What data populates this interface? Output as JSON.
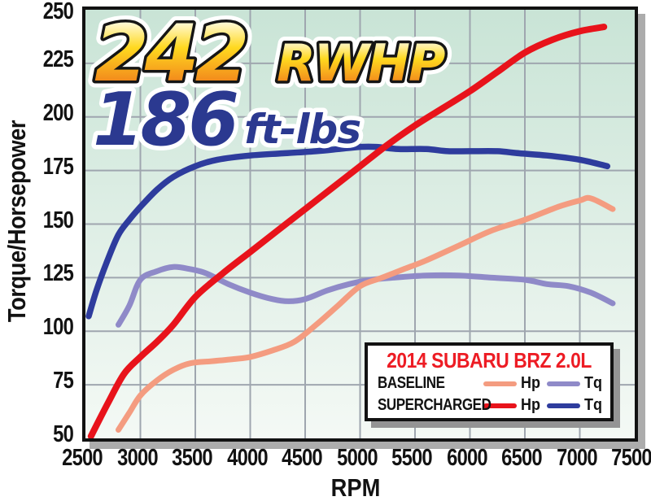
{
  "headline": {
    "power_value": "242",
    "power_unit": "RWHP",
    "torque_value": "186",
    "torque_unit": "ft-lbs",
    "power_gradient": [
      "#FFFDEC",
      "#FFD91F",
      "#F2871C"
    ],
    "power_outline": "#151515",
    "halo": "#FFFFFF",
    "torque_color": "#2B3990"
  },
  "legend": {
    "title": "2014 SUBARU BRZ 2.0L",
    "title_color": "#ED1C24",
    "rows": [
      {
        "label": "BASELINE",
        "entries": [
          {
            "label": "Hp",
            "color": "#F49C80"
          },
          {
            "label": "Tq",
            "color": "#8F8AC8"
          }
        ]
      },
      {
        "label": "SUPERCHARGED",
        "entries": [
          {
            "label": "Hp",
            "color": "#E8131B"
          },
          {
            "label": "Tq",
            "color": "#2E3C9D"
          }
        ]
      }
    ]
  },
  "colors": {
    "plot_bg_top": "#C9E4D6",
    "plot_bg_bottom": "#F4F9F5",
    "grid": "#9FA6AF",
    "border": "#121212",
    "axis_text": "#121212"
  },
  "chart_data": {
    "type": "line",
    "title": "2014 SUBARU BRZ 2.0L",
    "xlabel": "RPM",
    "ylabel": "Torque/Horsepower",
    "xlim": [
      2500,
      7500
    ],
    "ylim": [
      50,
      250
    ],
    "x_ticks": [
      2500,
      3000,
      3500,
      4000,
      4500,
      5000,
      5500,
      6000,
      6500,
      7000,
      7500
    ],
    "y_ticks": [
      50,
      75,
      100,
      125,
      150,
      175,
      200,
      225,
      250
    ],
    "grid": true,
    "legend_position": "inside bottom-right",
    "annotations": [
      "242 RWHP",
      "186 ft-lbs"
    ],
    "series": [
      {
        "name": "Baseline Tq",
        "group": "BASELINE",
        "unit": "ft-lbs",
        "color": "#8F8AC8",
        "width": 7,
        "points": [
          [
            2800,
            103
          ],
          [
            2900,
            112
          ],
          [
            3000,
            124
          ],
          [
            3150,
            128
          ],
          [
            3300,
            130
          ],
          [
            3450,
            129
          ],
          [
            3600,
            127
          ],
          [
            3800,
            122
          ],
          [
            4000,
            118
          ],
          [
            4200,
            115
          ],
          [
            4350,
            114
          ],
          [
            4500,
            115
          ],
          [
            4700,
            119
          ],
          [
            4900,
            122
          ],
          [
            5100,
            124
          ],
          [
            5300,
            125
          ],
          [
            5600,
            126
          ],
          [
            5900,
            126
          ],
          [
            6200,
            125
          ],
          [
            6500,
            124
          ],
          [
            6700,
            122
          ],
          [
            6900,
            121
          ],
          [
            7100,
            118
          ],
          [
            7300,
            113
          ]
        ]
      },
      {
        "name": "Baseline Hp",
        "group": "BASELINE",
        "unit": "Hp",
        "color": "#F49C80",
        "width": 7,
        "points": [
          [
            2800,
            54
          ],
          [
            2900,
            62
          ],
          [
            3000,
            70
          ],
          [
            3150,
            77
          ],
          [
            3300,
            82
          ],
          [
            3450,
            85
          ],
          [
            3650,
            86
          ],
          [
            3850,
            87
          ],
          [
            4000,
            88
          ],
          [
            4200,
            91
          ],
          [
            4400,
            95
          ],
          [
            4600,
            103
          ],
          [
            4800,
            112
          ],
          [
            5000,
            121
          ],
          [
            5200,
            125
          ],
          [
            5400,
            129
          ],
          [
            5600,
            133
          ],
          [
            5900,
            140
          ],
          [
            6200,
            147
          ],
          [
            6500,
            152
          ],
          [
            6800,
            158
          ],
          [
            7000,
            161
          ],
          [
            7100,
            162
          ],
          [
            7300,
            157
          ]
        ]
      },
      {
        "name": "Supercharged Tq",
        "group": "SUPERCHARGED",
        "unit": "ft-lbs",
        "color": "#2E3C9D",
        "width": 7.5,
        "points": [
          [
            2530,
            107
          ],
          [
            2600,
            119
          ],
          [
            2700,
            133
          ],
          [
            2800,
            145
          ],
          [
            2900,
            152
          ],
          [
            3000,
            158
          ],
          [
            3150,
            166
          ],
          [
            3300,
            172
          ],
          [
            3500,
            177
          ],
          [
            3700,
            180
          ],
          [
            4000,
            182
          ],
          [
            4300,
            183
          ],
          [
            4600,
            184
          ],
          [
            4800,
            185
          ],
          [
            5000,
            186
          ],
          [
            5150,
            186
          ],
          [
            5350,
            185
          ],
          [
            5600,
            185
          ],
          [
            5800,
            184
          ],
          [
            6000,
            184
          ],
          [
            6250,
            184
          ],
          [
            6450,
            183
          ],
          [
            6700,
            182
          ],
          [
            7000,
            180
          ],
          [
            7250,
            177
          ]
        ]
      },
      {
        "name": "Supercharged Hp",
        "group": "SUPERCHARGED",
        "unit": "Hp",
        "color": "#E8131B",
        "width": 8,
        "points": [
          [
            2550,
            51
          ],
          [
            2700,
            66
          ],
          [
            2850,
            80
          ],
          [
            3000,
            88
          ],
          [
            3150,
            95
          ],
          [
            3300,
            103
          ],
          [
            3500,
            116
          ],
          [
            3750,
            127
          ],
          [
            4000,
            137
          ],
          [
            4250,
            147
          ],
          [
            4500,
            157
          ],
          [
            4750,
            167
          ],
          [
            5000,
            177
          ],
          [
            5250,
            187
          ],
          [
            5500,
            196
          ],
          [
            5750,
            204
          ],
          [
            6000,
            212
          ],
          [
            6250,
            221
          ],
          [
            6500,
            230
          ],
          [
            6750,
            236
          ],
          [
            7000,
            240
          ],
          [
            7220,
            242
          ]
        ]
      }
    ]
  }
}
